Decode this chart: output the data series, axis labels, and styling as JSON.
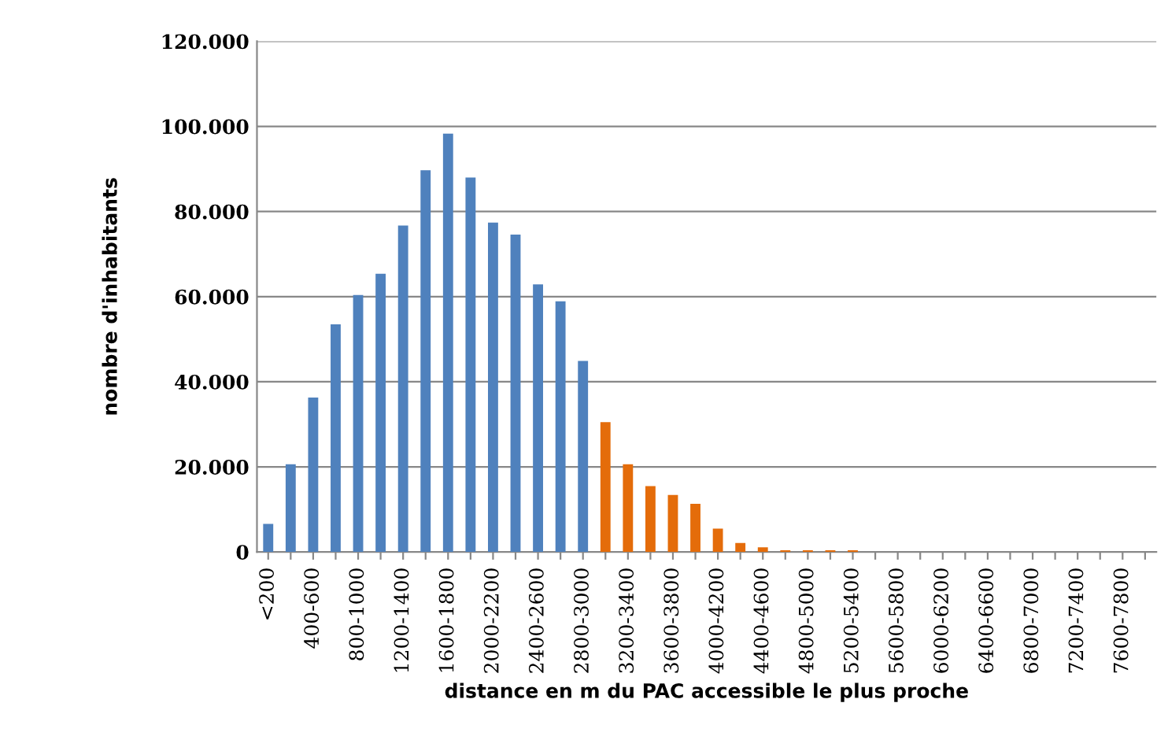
{
  "chart_data": {
    "type": "bar",
    "xlabel": "distance en m du PAC accessible le plus proche",
    "ylabel": "nombre d'inhabitants",
    "categories": [
      "<200",
      null,
      "400-600",
      null,
      "800-1000",
      null,
      "1200-1400",
      null,
      "1600-1800",
      null,
      "2000-2200",
      null,
      "2400-2600",
      null,
      "2800-3000",
      null,
      "3200-3400",
      null,
      "3600-3800",
      null,
      "4000-4200",
      null,
      "4400-4600",
      null,
      "4800-5000",
      null,
      "5200-5400",
      null,
      "5600-5800",
      null,
      "6000-6200",
      null,
      "6400-6600",
      null,
      "6800-7000",
      null,
      "7200-7400",
      null,
      "7600-7800",
      null
    ],
    "values": [
      6600,
      20600,
      36300,
      53500,
      60400,
      65400,
      76700,
      89700,
      98300,
      88000,
      77400,
      74600,
      62900,
      58900,
      44900,
      30500,
      20600,
      15500,
      13400,
      11300,
      5500,
      2100,
      1100,
      400,
      400,
      400,
      400,
      0,
      0,
      0,
      0,
      0,
      0,
      0,
      0,
      0,
      0,
      0,
      0,
      0
    ],
    "colors": [
      "#4f81bd",
      "#4f81bd",
      "#4f81bd",
      "#4f81bd",
      "#4f81bd",
      "#4f81bd",
      "#4f81bd",
      "#4f81bd",
      "#4f81bd",
      "#4f81bd",
      "#4f81bd",
      "#4f81bd",
      "#4f81bd",
      "#4f81bd",
      "#4f81bd",
      "#e46c0a",
      "#e46c0a",
      "#e46c0a",
      "#e46c0a",
      "#e46c0a",
      "#e46c0a",
      "#e46c0a",
      "#e46c0a",
      "#e46c0a",
      "#e46c0a",
      "#e46c0a",
      "#e46c0a",
      "#e46c0a",
      "#e46c0a",
      "#e46c0a",
      "#e46c0a",
      "#e46c0a",
      "#e46c0a",
      "#e46c0a",
      "#e46c0a",
      "#e46c0a",
      "#e46c0a",
      "#e46c0a",
      "#e46c0a",
      "#e46c0a"
    ],
    "ylim": [
      0,
      120000
    ],
    "yticks": [
      0,
      {
        "value": 20000,
        "label": "20.000"
      },
      {
        "value": 40000,
        "label": "40.000"
      },
      {
        "value": 60000,
        "label": "60.000"
      },
      {
        "value": 80000,
        "label": "80.000"
      },
      {
        "value": 100000,
        "label": "100.000"
      },
      {
        "value": 120000,
        "label": "120.000"
      }
    ],
    "grid": "y"
  }
}
